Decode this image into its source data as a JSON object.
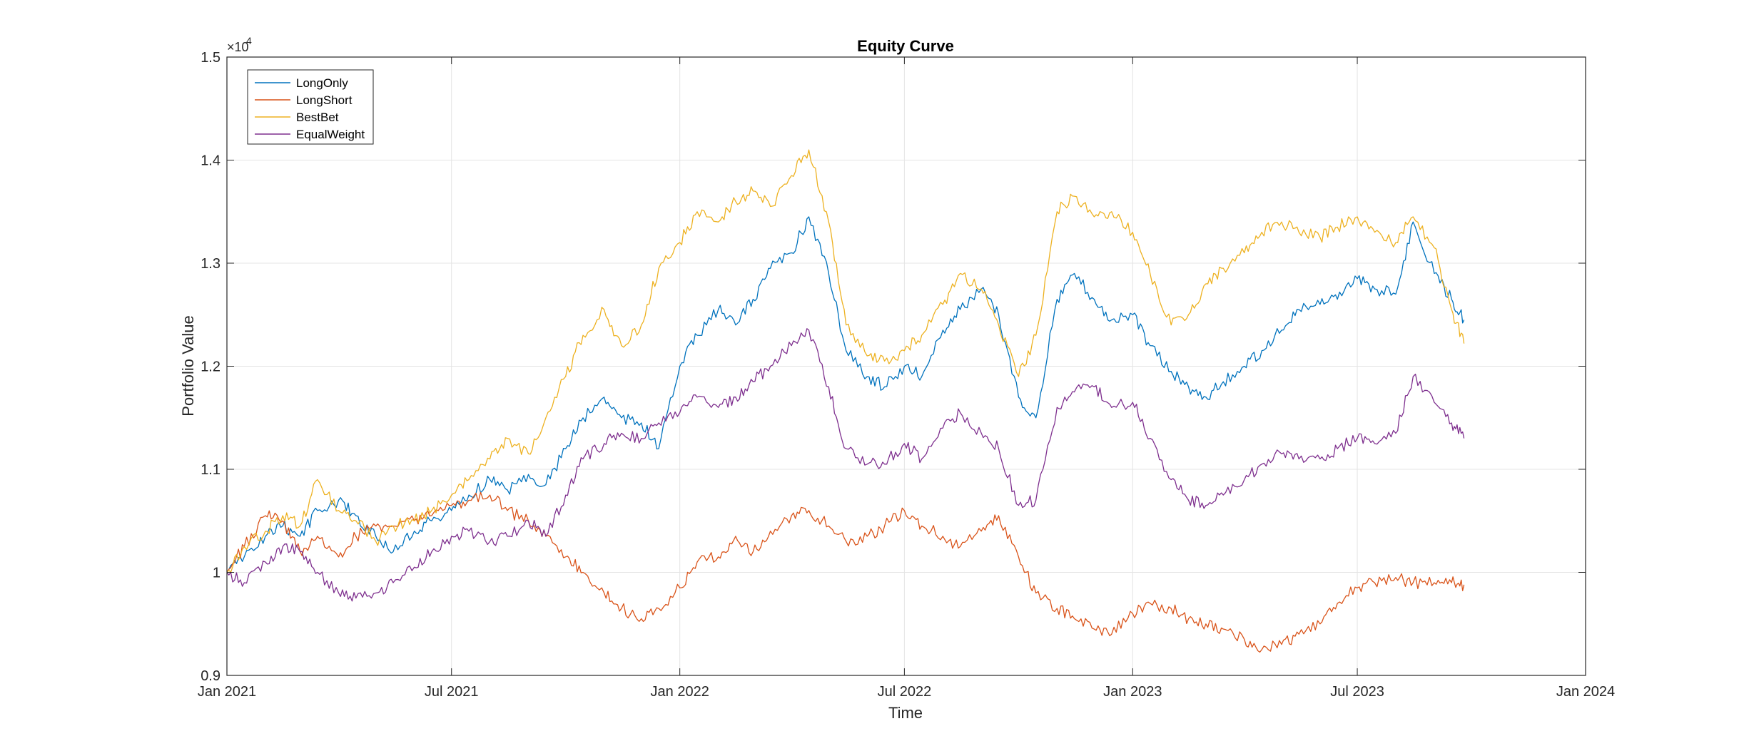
{
  "chart_data": {
    "type": "line",
    "title": "Equity Curve",
    "xlabel": "Time",
    "ylabel": "Portfolio Value",
    "y_exponent_label": "×10",
    "y_exponent": "4",
    "xlim": [
      "2021-01-01",
      "2024-01-01"
    ],
    "ylim": [
      9000,
      15000
    ],
    "grid": true,
    "legend_position": "top-left",
    "x_ticks": [
      {
        "date": "2021-01-01",
        "label": "Jan 2021"
      },
      {
        "date": "2021-07-01",
        "label": "Jul 2021"
      },
      {
        "date": "2022-01-01",
        "label": "Jan 2022"
      },
      {
        "date": "2022-07-01",
        "label": "Jul 2022"
      },
      {
        "date": "2023-01-01",
        "label": "Jan 2023"
      },
      {
        "date": "2023-07-01",
        "label": "Jul 2023"
      },
      {
        "date": "2024-01-01",
        "label": "Jan 2024"
      }
    ],
    "y_ticks": [
      {
        "value": 9000,
        "label": "0.9"
      },
      {
        "value": 10000,
        "label": "1"
      },
      {
        "value": 11000,
        "label": "1.1"
      },
      {
        "value": 12000,
        "label": "1.2"
      },
      {
        "value": 13000,
        "label": "1.3"
      },
      {
        "value": 14000,
        "label": "1.4"
      },
      {
        "value": 15000,
        "label": "1.5"
      }
    ],
    "x": [
      "2021-01-01",
      "2021-01-15",
      "2021-02-01",
      "2021-02-15",
      "2021-03-01",
      "2021-03-15",
      "2021-04-01",
      "2021-04-15",
      "2021-05-01",
      "2021-05-15",
      "2021-06-01",
      "2021-06-15",
      "2021-07-01",
      "2021-07-15",
      "2021-08-01",
      "2021-08-15",
      "2021-09-01",
      "2021-09-15",
      "2021-10-01",
      "2021-10-15",
      "2021-11-01",
      "2021-11-15",
      "2021-12-01",
      "2021-12-15",
      "2022-01-01",
      "2022-01-15",
      "2022-02-01",
      "2022-02-15",
      "2022-03-01",
      "2022-03-15",
      "2022-04-01",
      "2022-04-15",
      "2022-05-01",
      "2022-05-15",
      "2022-06-01",
      "2022-06-15",
      "2022-07-01",
      "2022-07-15",
      "2022-08-01",
      "2022-08-15",
      "2022-09-01",
      "2022-09-15",
      "2022-10-01",
      "2022-10-15",
      "2022-11-01",
      "2022-11-15",
      "2022-12-01",
      "2022-12-15",
      "2023-01-01",
      "2023-01-15",
      "2023-02-01",
      "2023-02-15",
      "2023-03-01",
      "2023-03-15",
      "2023-04-01",
      "2023-04-15",
      "2023-05-01",
      "2023-05-15",
      "2023-06-01",
      "2023-06-15",
      "2023-07-01",
      "2023-07-15",
      "2023-08-01",
      "2023-08-15",
      "2023-09-01",
      "2023-09-15",
      "2023-09-25"
    ],
    "series": [
      {
        "name": "LongOnly",
        "color": "#0072bd",
        "values": [
          10000,
          10150,
          10350,
          10450,
          10350,
          10600,
          10700,
          10550,
          10350,
          10200,
          10400,
          10500,
          10600,
          10750,
          10900,
          10800,
          10950,
          10850,
          11200,
          11500,
          11700,
          11500,
          11450,
          11200,
          12000,
          12300,
          12550,
          12400,
          12650,
          12950,
          13100,
          13450,
          12900,
          12150,
          11900,
          11800,
          12000,
          11900,
          12350,
          12550,
          12750,
          12500,
          11700,
          11500,
          12650,
          12900,
          12650,
          12450,
          12500,
          12200,
          11950,
          11800,
          11700,
          11850,
          12000,
          12150,
          12350,
          12550,
          12600,
          12650,
          12850,
          12750,
          12700,
          13400,
          12900,
          12650,
          12450
        ]
      },
      {
        "name": "LongShort",
        "color": "#d95319",
        "values": [
          10000,
          10250,
          10550,
          10500,
          10200,
          10350,
          10150,
          10350,
          10450,
          10450,
          10500,
          10550,
          10650,
          10700,
          10750,
          10600,
          10500,
          10350,
          10150,
          10000,
          9800,
          9650,
          9550,
          9650,
          9850,
          10100,
          10150,
          10350,
          10200,
          10400,
          10550,
          10600,
          10450,
          10300,
          10350,
          10450,
          10600,
          10450,
          10350,
          10250,
          10400,
          10550,
          10150,
          9800,
          9650,
          9550,
          9450,
          9400,
          9600,
          9700,
          9650,
          9550,
          9500,
          9450,
          9350,
          9250,
          9300,
          9400,
          9500,
          9700,
          9850,
          9900,
          9950,
          9900,
          9900,
          9900,
          9880
        ]
      },
      {
        "name": "BestBet",
        "color": "#edb120",
        "values": [
          10000,
          10250,
          10400,
          10550,
          10450,
          10900,
          10600,
          10500,
          10300,
          10450,
          10500,
          10600,
          10750,
          10900,
          11100,
          11300,
          11150,
          11500,
          11900,
          12300,
          12550,
          12200,
          12400,
          12950,
          13200,
          13500,
          13400,
          13600,
          13700,
          13550,
          13850,
          14100,
          13400,
          12400,
          12100,
          12050,
          12150,
          12300,
          12600,
          12900,
          12750,
          12400,
          11900,
          12300,
          13500,
          13650,
          13450,
          13500,
          13300,
          12900,
          12400,
          12500,
          12800,
          12950,
          13100,
          13300,
          13400,
          13300,
          13250,
          13350,
          13450,
          13300,
          13200,
          13450,
          13150,
          12550,
          12220
        ]
      },
      {
        "name": "EqualWeight",
        "color": "#7e2f8e",
        "values": [
          10000,
          9900,
          10100,
          10250,
          10200,
          10000,
          9800,
          9750,
          9800,
          9900,
          10050,
          10200,
          10350,
          10400,
          10300,
          10350,
          10500,
          10350,
          10750,
          11100,
          11250,
          11350,
          11300,
          11450,
          11550,
          11700,
          11600,
          11700,
          11850,
          12000,
          12200,
          12350,
          11800,
          11200,
          11050,
          11050,
          11250,
          11100,
          11400,
          11550,
          11350,
          11200,
          10650,
          10700,
          11600,
          11750,
          11800,
          11600,
          11650,
          11300,
          10900,
          10700,
          10650,
          10750,
          10900,
          11050,
          11150,
          11100,
          11100,
          11200,
          11300,
          11250,
          11350,
          11900,
          11650,
          11450,
          11300
        ]
      }
    ]
  }
}
